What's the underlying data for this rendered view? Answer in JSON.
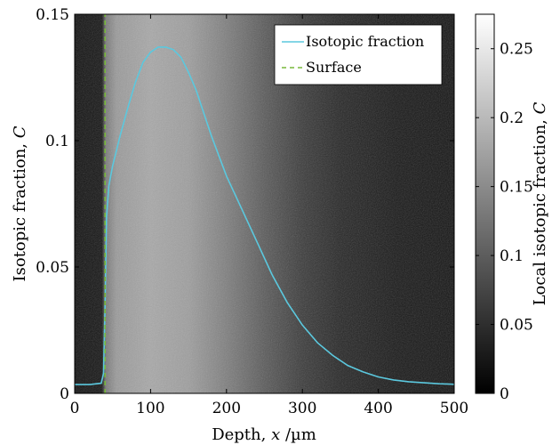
{
  "chart_data": {
    "type": "line",
    "background": "heatmap-image",
    "xlabel": {
      "prefix": "Depth, ",
      "var": "x",
      "suffix": " /µm"
    },
    "ylabel": {
      "prefix": "Isotopic fraction, ",
      "var": "C"
    },
    "xlim": [
      0,
      500
    ],
    "ylim": [
      0,
      0.15
    ],
    "x_ticks": [
      {
        "value": 0,
        "label": "0"
      },
      {
        "value": 100,
        "label": "100"
      },
      {
        "value": 200,
        "label": "200"
      },
      {
        "value": 300,
        "label": "300"
      },
      {
        "value": 400,
        "label": "400"
      },
      {
        "value": 500,
        "label": "500"
      }
    ],
    "y_ticks": [
      {
        "value": 0,
        "label": "0"
      },
      {
        "value": 0.05,
        "label": "0.05"
      },
      {
        "value": 0.1,
        "label": "0.1"
      },
      {
        "value": 0.15,
        "label": "0.15"
      }
    ],
    "grid": false,
    "legend": {
      "position": "top-right"
    },
    "series": [
      {
        "name": "Isotopic fraction",
        "color": "#5bc8de",
        "style": "solid",
        "x": [
          0,
          20,
          35,
          38,
          40,
          42,
          45,
          50,
          60,
          70,
          80,
          90,
          100,
          110,
          120,
          130,
          140,
          150,
          160,
          180,
          200,
          220,
          240,
          260,
          280,
          300,
          320,
          340,
          360,
          380,
          400,
          420,
          440,
          460,
          480,
          500
        ],
        "y": [
          0.0035,
          0.0035,
          0.004,
          0.008,
          0.035,
          0.07,
          0.082,
          0.09,
          0.102,
          0.113,
          0.123,
          0.131,
          0.135,
          0.137,
          0.137,
          0.136,
          0.133,
          0.127,
          0.12,
          0.102,
          0.086,
          0.073,
          0.06,
          0.047,
          0.036,
          0.027,
          0.02,
          0.015,
          0.011,
          0.0085,
          0.0065,
          0.0053,
          0.0046,
          0.0042,
          0.0038,
          0.0036
        ]
      },
      {
        "name": "Surface",
        "color": "#78b83c",
        "style": "dashed",
        "x": [
          40,
          40
        ],
        "y": [
          0,
          0.15
        ]
      }
    ],
    "colorbar": {
      "label": {
        "prefix": "Local isotopic fraction, ",
        "var": "C"
      },
      "range": [
        0,
        0.275
      ],
      "colormap": "gray",
      "ticks": [
        {
          "value": 0,
          "label": "0"
        },
        {
          "value": 0.05,
          "label": "0.05"
        },
        {
          "value": 0.1,
          "label": "0.1"
        },
        {
          "value": 0.15,
          "label": "0.15"
        },
        {
          "value": 0.2,
          "label": "0.2"
        },
        {
          "value": 0.25,
          "label": "0.25"
        }
      ]
    }
  }
}
